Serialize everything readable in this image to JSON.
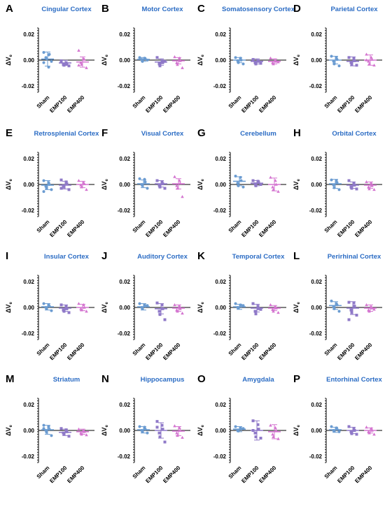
{
  "colors": {
    "sham": "#6a9bd1",
    "emp100": "#8f79c8",
    "emp400": "#d475d0",
    "title": "#2b6cc4"
  },
  "chart_data": [
    {
      "type": "scatter",
      "letter": "A",
      "title": "Cingular Cortex",
      "ylabel": "ΔV",
      "ylabel_sub": "e",
      "categories": [
        "Sham",
        "EMP100",
        "EMP400"
      ],
      "ylim": [
        -0.025,
        0.025
      ],
      "yticks": [
        "0.02",
        "0.00",
        "-0.02"
      ],
      "series": [
        {
          "category": "Sham",
          "mean": 0.0008,
          "sd": 0.0055,
          "points": [
            0.006,
            0.004,
            0.0045,
            0.002,
            0.001,
            -0.001,
            -0.002,
            -0.0055
          ]
        },
        {
          "category": "EMP100",
          "mean": -0.0022,
          "sd": 0.002,
          "points": [
            -0.0015,
            -0.002,
            -0.003,
            -0.0035,
            -0.004,
            -0.0045,
            -0.0005
          ]
        },
        {
          "category": "EMP400",
          "mean": -0.0015,
          "sd": 0.004,
          "points": [
            0.0075,
            0.001,
            0.0005,
            -0.002,
            -0.0035,
            -0.006,
            -0.004
          ]
        }
      ]
    },
    {
      "type": "scatter",
      "letter": "B",
      "title": "Motor Cortex",
      "ylabel": "ΔV",
      "ylabel_sub": "e",
      "categories": [
        "Sham",
        "EMP100",
        "EMP400"
      ],
      "ylim": [
        -0.025,
        0.025
      ],
      "yticks": [
        "0.02",
        "0.00",
        "-0.02"
      ],
      "series": [
        {
          "category": "Sham",
          "mean": 0.0005,
          "sd": 0.0015,
          "points": [
            0.002,
            0.0015,
            0.001,
            0.0005,
            -0.001,
            0.0
          ]
        },
        {
          "category": "EMP100",
          "mean": -0.0015,
          "sd": 0.0025,
          "points": [
            0.002,
            -0.0005,
            -0.002,
            -0.003,
            -0.0045,
            -0.001
          ]
        },
        {
          "category": "EMP400",
          "mean": -0.0005,
          "sd": 0.0025,
          "points": [
            0.0025,
            0.0015,
            -0.0005,
            -0.002,
            -0.0035,
            -0.006
          ]
        }
      ]
    },
    {
      "type": "scatter",
      "letter": "C",
      "title": "Somatosensory Cortex",
      "ylabel": "ΔV",
      "ylabel_sub": "e",
      "categories": [
        "Sham",
        "EMP100",
        "EMP400"
      ],
      "ylim": [
        -0.025,
        0.025
      ],
      "yticks": [
        "0.02",
        "0.00",
        "-0.02"
      ],
      "series": [
        {
          "category": "Sham",
          "mean": 0.0,
          "sd": 0.002,
          "points": [
            0.002,
            0.0015,
            0.0,
            -0.0005,
            -0.002,
            -0.003
          ]
        },
        {
          "category": "EMP100",
          "mean": -0.001,
          "sd": 0.002,
          "points": [
            0.0005,
            -0.0005,
            -0.001,
            -0.002,
            -0.003,
            -0.0025
          ]
        },
        {
          "category": "EMP400",
          "mean": -0.001,
          "sd": 0.002,
          "points": [
            0.0015,
            0.0,
            -0.001,
            -0.002,
            -0.003,
            -0.0015
          ]
        }
      ]
    },
    {
      "type": "scatter",
      "letter": "D",
      "title": "Parietal Cortex",
      "ylabel": "ΔV",
      "ylabel_sub": "e",
      "categories": [
        "Sham",
        "EMP100",
        "EMP400"
      ],
      "ylim": [
        -0.025,
        0.025
      ],
      "yticks": [
        "0.02",
        "0.00",
        "-0.02"
      ],
      "series": [
        {
          "category": "Sham",
          "mean": 0.0,
          "sd": 0.003,
          "points": [
            0.003,
            0.002,
            0.0005,
            -0.001,
            -0.003,
            -0.0045
          ]
        },
        {
          "category": "EMP100",
          "mean": -0.001,
          "sd": 0.0035,
          "points": [
            0.002,
            0.0015,
            -0.0005,
            -0.002,
            -0.0035,
            -0.004
          ]
        },
        {
          "category": "EMP400",
          "mean": 0.0,
          "sd": 0.004,
          "points": [
            0.0045,
            0.002,
            0.0005,
            -0.001,
            -0.003,
            -0.004,
            0.0
          ]
        }
      ]
    },
    {
      "type": "scatter",
      "letter": "E",
      "title": "Retrosplenial Cortex",
      "ylabel": "ΔV",
      "ylabel_sub": "e",
      "categories": [
        "Sham",
        "EMP100",
        "EMP400"
      ],
      "ylim": [
        -0.025,
        0.025
      ],
      "yticks": [
        "0.02",
        "0.00",
        "-0.02"
      ],
      "series": [
        {
          "category": "Sham",
          "mean": -0.0005,
          "sd": 0.0035,
          "points": [
            0.003,
            0.0015,
            0.0,
            -0.0015,
            -0.003,
            -0.004,
            -0.0055
          ]
        },
        {
          "category": "EMP100",
          "mean": -0.0005,
          "sd": 0.003,
          "points": [
            0.0035,
            0.002,
            0.0005,
            -0.001,
            -0.002,
            -0.004,
            -0.003
          ]
        },
        {
          "category": "EMP400",
          "mean": 0.0,
          "sd": 0.0025,
          "points": [
            0.003,
            0.0015,
            0.0005,
            -0.0005,
            -0.002,
            -0.004
          ]
        }
      ]
    },
    {
      "type": "scatter",
      "letter": "F",
      "title": "Visual Cortex",
      "ylabel": "ΔV",
      "ylabel_sub": "e",
      "categories": [
        "Sham",
        "EMP100",
        "EMP400"
      ],
      "ylim": [
        -0.025,
        0.025
      ],
      "yticks": [
        "0.02",
        "0.00",
        "-0.02"
      ],
      "series": [
        {
          "category": "Sham",
          "mean": 0.0005,
          "sd": 0.003,
          "points": [
            0.0045,
            0.004,
            0.002,
            0.0,
            -0.001,
            -0.003
          ]
        },
        {
          "category": "EMP100",
          "mean": 0.0005,
          "sd": 0.0025,
          "points": [
            0.003,
            0.002,
            0.0005,
            -0.0005,
            -0.002,
            -0.003
          ]
        },
        {
          "category": "EMP400",
          "mean": 0.0005,
          "sd": 0.004,
          "points": [
            0.006,
            0.003,
            0.001,
            -0.001,
            -0.003,
            -0.0095
          ]
        }
      ]
    },
    {
      "type": "scatter",
      "letter": "G",
      "title": "Cerebellum",
      "ylabel": "ΔV",
      "ylabel_sub": "e",
      "categories": [
        "Sham",
        "EMP100",
        "EMP400"
      ],
      "ylim": [
        -0.025,
        0.025
      ],
      "yticks": [
        "0.02",
        "0.00",
        "-0.02"
      ],
      "series": [
        {
          "category": "Sham",
          "mean": 0.0025,
          "sd": 0.0035,
          "points": [
            0.0065,
            0.0055,
            0.003,
            0.001,
            -0.001,
            -0.002
          ]
        },
        {
          "category": "EMP100",
          "mean": 0.001,
          "sd": 0.002,
          "points": [
            0.003,
            0.0025,
            0.0015,
            0.0005,
            -0.001,
            0.0
          ]
        },
        {
          "category": "EMP400",
          "mean": 0.0,
          "sd": 0.005,
          "points": [
            0.0055,
            0.003,
            0.0,
            -0.002,
            -0.004,
            -0.0055
          ]
        }
      ]
    },
    {
      "type": "scatter",
      "letter": "H",
      "title": "Orbital Cortex",
      "ylabel": "ΔV",
      "ylabel_sub": "e",
      "categories": [
        "Sham",
        "EMP100",
        "EMP400"
      ],
      "ylim": [
        -0.025,
        0.025
      ],
      "yticks": [
        "0.02",
        "0.00",
        "-0.02"
      ],
      "series": [
        {
          "category": "Sham",
          "mean": 0.0005,
          "sd": 0.0035,
          "points": [
            0.0035,
            0.003,
            0.0015,
            -0.0005,
            -0.0025,
            -0.004
          ]
        },
        {
          "category": "EMP100",
          "mean": -0.0005,
          "sd": 0.0025,
          "points": [
            0.003,
            0.001,
            -0.0005,
            -0.002,
            -0.003,
            -0.0035
          ]
        },
        {
          "category": "EMP400",
          "mean": -0.0005,
          "sd": 0.0025,
          "points": [
            0.002,
            0.001,
            -0.001,
            -0.002,
            -0.0035,
            -0.004
          ]
        }
      ]
    },
    {
      "type": "scatter",
      "letter": "I",
      "title": "Insular Cortex",
      "ylabel": "ΔV",
      "ylabel_sub": "e",
      "categories": [
        "Sham",
        "EMP100",
        "EMP400"
      ],
      "ylim": [
        -0.025,
        0.025
      ],
      "yticks": [
        "0.02",
        "0.00",
        "-0.02"
      ],
      "series": [
        {
          "category": "Sham",
          "mean": 0.0005,
          "sd": 0.0025,
          "points": [
            0.003,
            0.002,
            0.001,
            0.0,
            -0.001,
            -0.0025
          ]
        },
        {
          "category": "EMP100",
          "mean": -0.0005,
          "sd": 0.0025,
          "points": [
            0.002,
            0.001,
            -0.001,
            -0.002,
            -0.003,
            -0.004
          ]
        },
        {
          "category": "EMP400",
          "mean": 0.0,
          "sd": 0.0025,
          "points": [
            0.003,
            0.002,
            0.0,
            -0.001,
            -0.002,
            -0.003
          ]
        }
      ]
    },
    {
      "type": "scatter",
      "letter": "J",
      "title": "Auditory Cortex",
      "ylabel": "ΔV",
      "ylabel_sub": "e",
      "categories": [
        "Sham",
        "EMP100",
        "EMP400"
      ],
      "ylim": [
        -0.025,
        0.025
      ],
      "yticks": [
        "0.02",
        "0.00",
        "-0.02"
      ],
      "series": [
        {
          "category": "Sham",
          "mean": 0.0005,
          "sd": 0.0025,
          "points": [
            0.003,
            0.002,
            0.001,
            0.0,
            -0.001,
            0.0015
          ]
        },
        {
          "category": "EMP100",
          "mean": -0.001,
          "sd": 0.004,
          "points": [
            0.0035,
            0.002,
            -0.001,
            -0.003,
            -0.0055,
            -0.0095
          ]
        },
        {
          "category": "EMP400",
          "mean": -0.0005,
          "sd": 0.0025,
          "points": [
            0.002,
            0.001,
            -0.001,
            -0.002,
            -0.003,
            -0.0045
          ]
        }
      ]
    },
    {
      "type": "scatter",
      "letter": "K",
      "title": "Temporal Cortex",
      "ylabel": "ΔV",
      "ylabel_sub": "e",
      "categories": [
        "Sham",
        "EMP100",
        "EMP400"
      ],
      "ylim": [
        -0.025,
        0.025
      ],
      "yticks": [
        "0.02",
        "0.00",
        "-0.02"
      ],
      "series": [
        {
          "category": "Sham",
          "mean": 0.0005,
          "sd": 0.002,
          "points": [
            0.003,
            0.002,
            0.001,
            0.0,
            -0.0005,
            0.0015
          ]
        },
        {
          "category": "EMP100",
          "mean": -0.0005,
          "sd": 0.003,
          "points": [
            0.003,
            0.001,
            -0.001,
            -0.003,
            -0.005,
            -0.0015
          ]
        },
        {
          "category": "EMP400",
          "mean": -0.0005,
          "sd": 0.002,
          "points": [
            0.002,
            0.0005,
            -0.0005,
            -0.0015,
            -0.003,
            -0.004
          ]
        }
      ]
    },
    {
      "type": "scatter",
      "letter": "L",
      "title": "Perirhinal Cortex",
      "ylabel": "ΔV",
      "ylabel_sub": "e",
      "categories": [
        "Sham",
        "EMP100",
        "EMP400"
      ],
      "ylim": [
        -0.025,
        0.025
      ],
      "yticks": [
        "0.02",
        "0.00",
        "-0.02"
      ],
      "series": [
        {
          "category": "Sham",
          "mean": 0.0015,
          "sd": 0.003,
          "points": [
            0.005,
            0.003,
            0.002,
            0.0005,
            -0.001,
            -0.003
          ]
        },
        {
          "category": "EMP100",
          "mean": -0.0005,
          "sd": 0.005,
          "points": [
            0.004,
            0.0035,
            0.001,
            -0.002,
            -0.004,
            -0.006,
            -0.0095
          ]
        },
        {
          "category": "EMP400",
          "mean": -0.0005,
          "sd": 0.0025,
          "points": [
            0.002,
            0.0005,
            -0.0005,
            -0.002,
            -0.003,
            -0.0015
          ]
        }
      ]
    },
    {
      "type": "scatter",
      "letter": "M",
      "title": "Striatum",
      "ylabel": "ΔV",
      "ylabel_sub": "e",
      "categories": [
        "Sham",
        "EMP100",
        "EMP400"
      ],
      "ylim": [
        -0.025,
        0.025
      ],
      "yticks": [
        "0.02",
        "0.00",
        "-0.02"
      ],
      "series": [
        {
          "category": "Sham",
          "mean": 0.0005,
          "sd": 0.0035,
          "points": [
            0.004,
            0.003,
            0.001,
            0.0,
            -0.0015,
            -0.004,
            0.0015
          ]
        },
        {
          "category": "EMP100",
          "mean": -0.0015,
          "sd": 0.0025,
          "points": [
            0.0015,
            0.0005,
            -0.001,
            -0.002,
            -0.003,
            -0.0045
          ]
        },
        {
          "category": "EMP400",
          "mean": -0.001,
          "sd": 0.002,
          "points": [
            0.001,
            0.0,
            -0.001,
            -0.002,
            -0.003,
            -0.0035
          ]
        }
      ]
    },
    {
      "type": "scatter",
      "letter": "N",
      "title": "Hippocampus",
      "ylabel": "ΔV",
      "ylabel_sub": "e",
      "categories": [
        "Sham",
        "EMP100",
        "EMP400"
      ],
      "ylim": [
        -0.025,
        0.025
      ],
      "yticks": [
        "0.02",
        "0.00",
        "-0.02"
      ],
      "series": [
        {
          "category": "Sham",
          "mean": 0.0005,
          "sd": 0.0025,
          "points": [
            0.003,
            0.0025,
            0.001,
            0.0,
            -0.001,
            -0.002
          ]
        },
        {
          "category": "EMP100",
          "mean": 0.0,
          "sd": 0.006,
          "points": [
            0.007,
            0.004,
            0.001,
            -0.002,
            -0.005,
            -0.009,
            0.0025
          ]
        },
        {
          "category": "EMP400",
          "mean": -0.0005,
          "sd": 0.0035,
          "points": [
            0.0035,
            0.002,
            0.0,
            -0.002,
            -0.004,
            -0.0055
          ]
        }
      ]
    },
    {
      "type": "scatter",
      "letter": "O",
      "title": "Amygdala",
      "ylabel": "ΔV",
      "ylabel_sub": "e",
      "categories": [
        "Sham",
        "EMP100",
        "EMP400"
      ],
      "ylim": [
        -0.025,
        0.025
      ],
      "yticks": [
        "0.02",
        "0.00",
        "-0.02"
      ],
      "series": [
        {
          "category": "Sham",
          "mean": 0.001,
          "sd": 0.002,
          "points": [
            0.003,
            0.002,
            0.001,
            0.0,
            -0.0005,
            0.0015
          ]
        },
        {
          "category": "EMP100",
          "mean": 0.0,
          "sd": 0.0075,
          "points": [
            0.0075,
            0.0045,
            0.001,
            -0.002,
            -0.005,
            -0.006,
            0.0
          ]
        },
        {
          "category": "EMP400",
          "mean": -0.001,
          "sd": 0.0055,
          "points": [
            0.004,
            0.002,
            0.0,
            -0.003,
            -0.005,
            -0.0065
          ]
        }
      ]
    },
    {
      "type": "scatter",
      "letter": "P",
      "title": "Entorhinal Cortex",
      "ylabel": "ΔV",
      "ylabel_sub": "e",
      "categories": [
        "Sham",
        "EMP100",
        "EMP400"
      ],
      "ylim": [
        -0.025,
        0.025
      ],
      "yticks": [
        "0.02",
        "0.00",
        "-0.02"
      ],
      "series": [
        {
          "category": "Sham",
          "mean": 0.0005,
          "sd": 0.002,
          "points": [
            0.003,
            0.002,
            0.001,
            0.0,
            -0.0005,
            -0.001
          ]
        },
        {
          "category": "EMP100",
          "mean": 0.0,
          "sd": 0.0025,
          "points": [
            0.003,
            0.0015,
            0.0,
            -0.001,
            -0.0025,
            -0.003
          ]
        },
        {
          "category": "EMP400",
          "mean": 0.0,
          "sd": 0.002,
          "points": [
            0.0025,
            0.0015,
            0.0,
            -0.001,
            -0.002,
            -0.003
          ]
        }
      ]
    }
  ]
}
